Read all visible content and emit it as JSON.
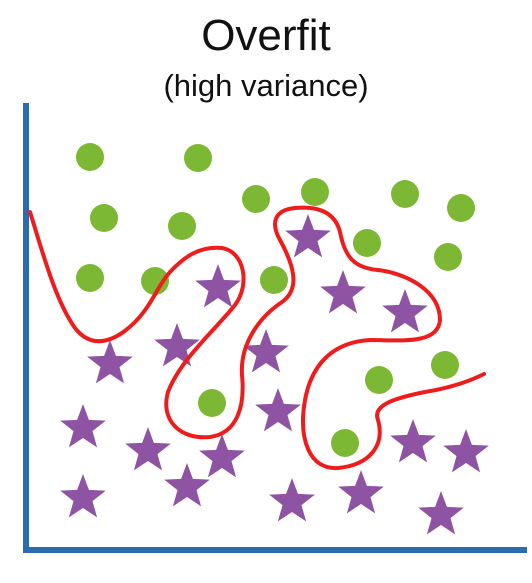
{
  "title": "Overfit",
  "subtitle": "(high variance)",
  "colors": {
    "axis": "#2b6cb0",
    "circle": "#7cb833",
    "star": "#8e54a3",
    "boundary": "#ee1c1c"
  },
  "legend_icons": {
    "circle": "green-circle-icon",
    "star": "purple-star-icon"
  }
}
